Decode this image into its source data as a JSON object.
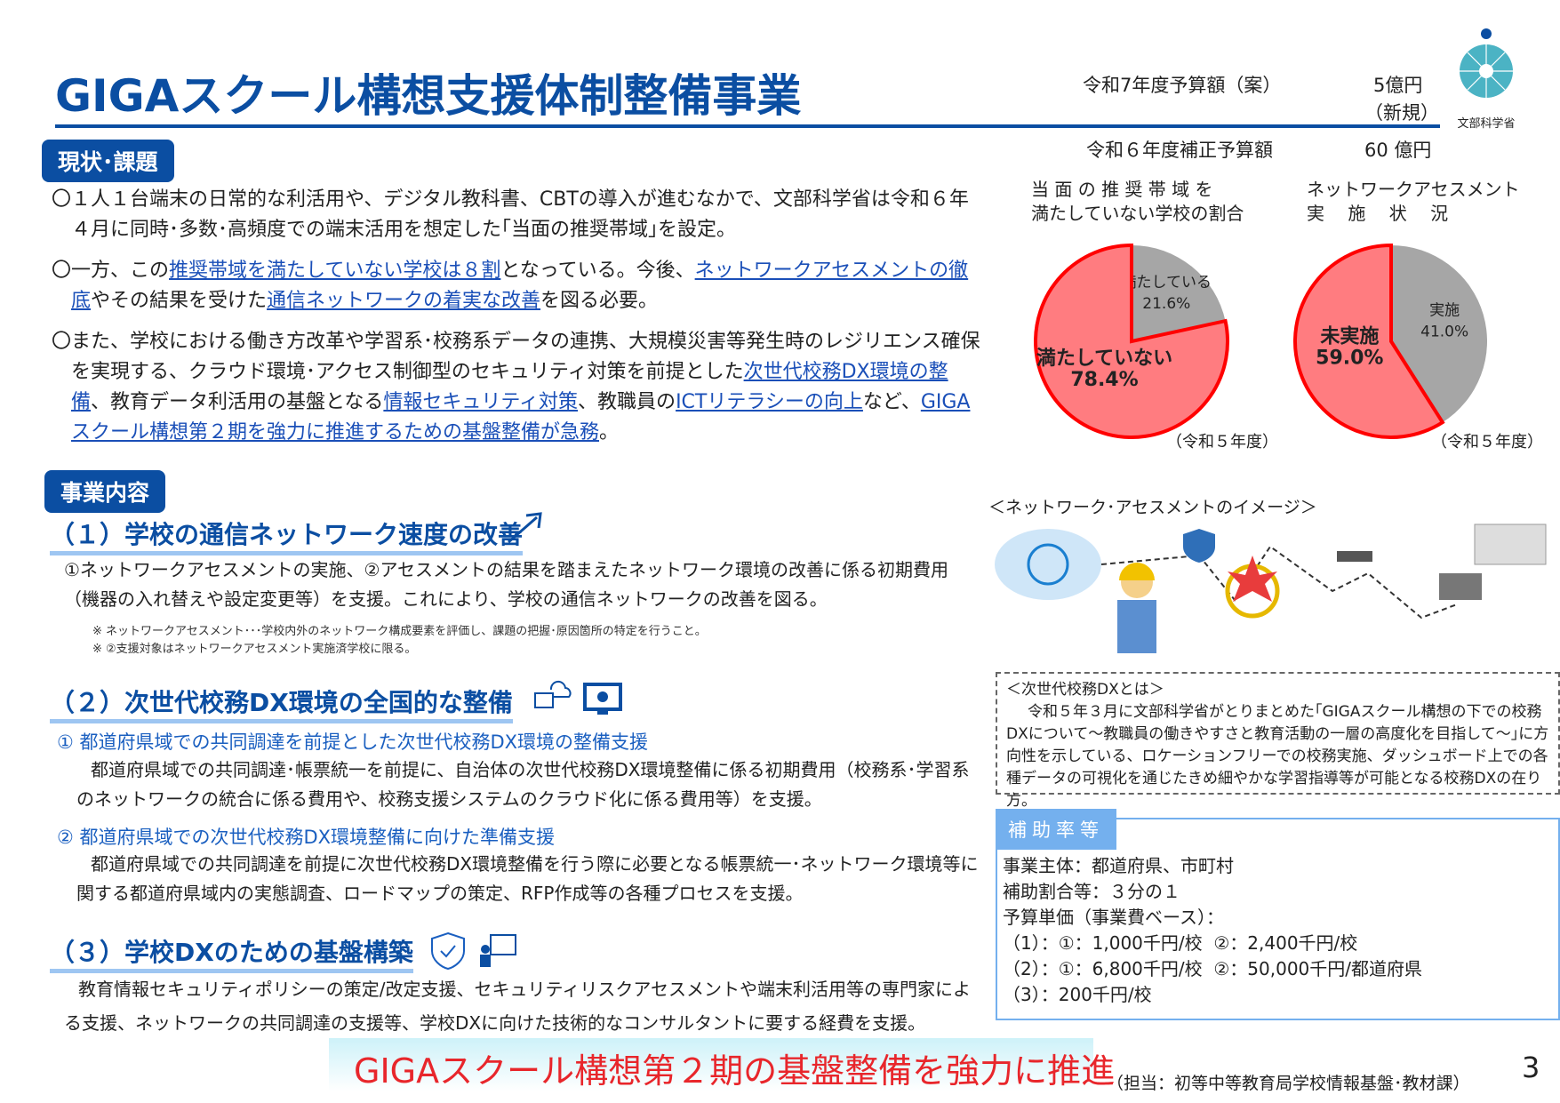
{
  "header": {
    "title": "GIGAスクール構想支援体制整備事業",
    "budget_label": "令和7年度予算額（案）",
    "budget_value": "5億円",
    "budget_note": "（新規）",
    "supp_label": "令和６年度補正予算額",
    "supp_value": "60 億円",
    "logo_text": "文部科学省"
  },
  "current": {
    "badge": "現状･課題",
    "paragraphs": [
      [
        {
          "t": "〇１人１台端末の日常的な利活用や、デジタル教科書、CBTの導入が進むなかで、文部科学省は令和６年４月に同時･多数･高頻度での端末活用を想定した｢当面の推奨帯域｣を設定。"
        }
      ],
      [
        {
          "t": "〇一方、この"
        },
        {
          "t": "推奨帯域を満たしていない学校は８割",
          "link": true
        },
        {
          "t": "となっている。今後、"
        },
        {
          "t": "ネットワークアセスメントの徹底",
          "link": true
        },
        {
          "t": "やその結果を受けた"
        },
        {
          "t": "通信ネットワークの着実な改善",
          "link": true
        },
        {
          "t": "を図る必要。"
        }
      ],
      [
        {
          "t": "〇また、学校における働き方改革や学習系･校務系データの連携、大規模災害等発生時のレジリエンス確保を実現する、クラウド環境･アクセス制御型のセキュリティ対策を前提とした"
        },
        {
          "t": "次世代校務DX環境の整備",
          "link": true
        },
        {
          "t": "、教育データ利活用の基盤となる"
        },
        {
          "t": "情報セキュリティ対策",
          "link": true
        },
        {
          "t": "、教職員の"
        },
        {
          "t": "ICTリテラシーの向上",
          "link": true
        },
        {
          "t": "など、"
        },
        {
          "t": "GIGAスクール構想第２期を強力に推進するための基盤整備が急務",
          "link": true
        },
        {
          "t": "。"
        }
      ]
    ]
  },
  "chart_data": [
    {
      "type": "pie",
      "title": "当 面 の 推 奨 帯 域 を\n満たしていない学校の割合",
      "slices": [
        {
          "label": "満たしている",
          "value": 21.6,
          "display": "21.6%",
          "color": "#a6a6a6"
        },
        {
          "label": "満たしていない",
          "value": 78.4,
          "display": "78.4%",
          "color": "#ff7c80"
        }
      ],
      "note": "（令和５年度）"
    },
    {
      "type": "pie",
      "title": "ネットワークアセスメント\n実　 施　 状　 況",
      "slices": [
        {
          "label": "実施",
          "value": 41.0,
          "display": "41.0%",
          "color": "#a6a6a6"
        },
        {
          "label": "未実施",
          "value": 59.0,
          "display": "59.0%",
          "color": "#ff7c80"
        }
      ],
      "note": "（令和５年度）"
    }
  ],
  "content": {
    "badge": "事業内容",
    "s1": {
      "heading": "（１）学校の通信ネットワーク速度の改善",
      "text": "①ネットワークアセスメントの実施、②アセスメントの結果を踏まえたネットワーク環境の改善に係る初期費用（機器の入れ替えや設定変更等）を支援。これにより、学校の通信ネットワークの改善を図る。",
      "note1": "※ ネットワークアセスメント･･･学校内外のネットワーク構成要素を評価し、課題の把握･原因箇所の特定を行うこと。",
      "note2": "※ ②支援対象はネットワークアセスメント実施済学校に限る。"
    },
    "s2": {
      "heading": "（２）次世代校務DX環境の全国的な整備",
      "sub1": "① 都道府県域での共同調達を前提とした次世代校務DX環境の整備支援",
      "text1": "都道府県域での共同調達･帳票統一を前提に、自治体の次世代校務DX環境整備に係る初期費用（校務系･学習系のネットワークの統合に係る費用や、校務支援システムのクラウド化に係る費用等）を支援。",
      "sub2": "② 都道府県域での次世代校務DX環境整備に向けた準備支援",
      "text2": "都道府県域での共同調達を前提に次世代校務DX環境整備を行う際に必要となる帳票統一･ネットワーク環境等に関する都道府県域内の実態調査、ロードマップの策定、RFP作成等の各種プロセスを支援。"
    },
    "s3": {
      "heading": "（３）学校DXのための基盤構築",
      "text": "教育情報セキュリティポリシーの策定/改定支援、セキュリティリスクアセスメントや端末利活用等の専門家による支援、ネットワークの共同調達の支援等、学校DXに向けた技術的なコンサルタントに要する経費を支援。"
    }
  },
  "image_caption": "＜ネットワーク･アセスメントのイメージ＞",
  "dx_box": {
    "title": "＜次世代校務DXとは＞",
    "text": "令和５年３月に文部科学省がとりまとめた｢GIGAスクール構想の下での校務DXについて～教職員の働きやすさと教育活動の一層の高度化を目指して～｣に方向性を示している、ロケーションフリーでの校務実施、ダッシュボード上での各種データの可視化を通じたきめ細やかな学習指導等が可能となる校務DXの在り方。"
  },
  "subsidy": {
    "tab": "補助率等",
    "lines": [
      "事業主体：都道府県、市町村",
      "補助割合等：３分の１",
      "予算単価（事業費ベース）：",
      "（1）：①：1,000千円/校  ②：2,400千円/校",
      "（2）：①：6,800千円/校  ②：50,000千円/都道府県",
      "（3）：200千円/校"
    ]
  },
  "footer": {
    "banner": "GIGAスクール構想第２期の基盤整備を強力に推進",
    "contact": "（担当：初等中等教育局学校情報基盤･教材課）",
    "page": "3"
  }
}
